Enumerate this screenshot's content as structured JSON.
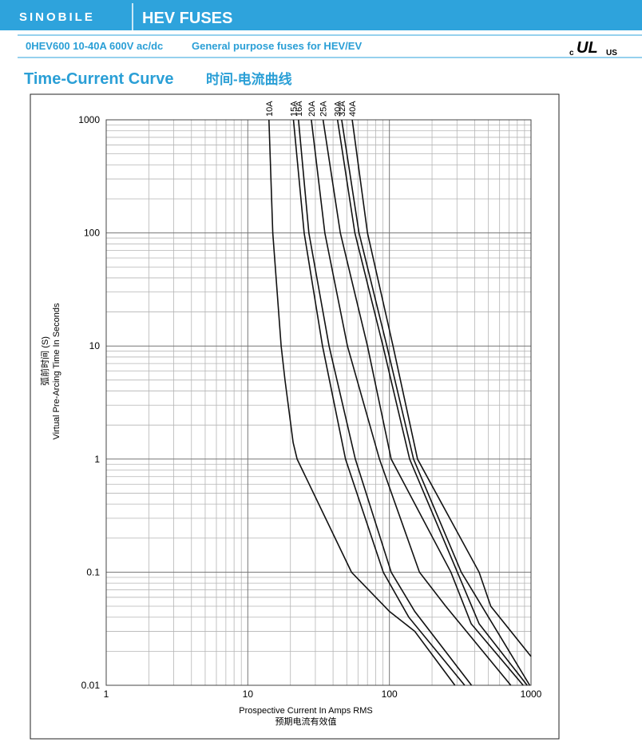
{
  "header": {
    "logo": "SINOBILE",
    "title": "HEV FUSES"
  },
  "subheader": {
    "model": "0HEV600 10-40A 600V ac/dc",
    "description": "General purpose fuses for HEV/EV",
    "cert": {
      "c": "c",
      "ul": "UL",
      "us": "US"
    }
  },
  "section_title": {
    "en": "Time-Current Curve",
    "zh": "时间-电流曲线"
  },
  "chart_data": {
    "type": "line",
    "xscale": "log",
    "yscale": "log",
    "grid": true,
    "x_label": "Prospective Current In Amps RMS",
    "x_label_zh": "预期电流有效值",
    "y_label": "Virtual Pre-Arcing Time In Seconds",
    "y_label_zh": "弧前时间 (S)",
    "xlim": [
      1,
      1000
    ],
    "xticks": [
      1,
      10,
      100,
      1000
    ],
    "ylim": [
      0.01,
      1000
    ],
    "yticks": [
      0.01,
      0.1,
      1,
      10,
      100,
      1000
    ],
    "series": [
      {
        "name": "10A",
        "color": "#111111",
        "x": [
          14.1,
          15,
          17.2,
          18.3,
          20.9,
          22.3,
          54,
          100,
          151,
          290
        ],
        "values": [
          1000,
          100,
          10,
          5,
          1.4,
          1,
          0.1,
          0.045,
          0.03,
          0.01
        ]
      },
      {
        "name": "15A",
        "color": "#111111",
        "x": [
          21,
          25,
          33.7,
          49,
          90.5,
          137,
          340
        ],
        "values": [
          1000,
          100,
          10,
          1,
          0.1,
          0.04,
          0.01
        ]
      },
      {
        "name": "16A",
        "color": "#111111",
        "x": [
          22.8,
          27,
          37.5,
          57.5,
          103,
          151,
          380
        ],
        "values": [
          1000,
          100,
          10,
          1,
          0.1,
          0.045,
          0.01
        ]
      },
      {
        "name": "20A",
        "color": "#111111",
        "x": [
          28.1,
          35,
          50.5,
          85,
          163,
          250,
          720
        ],
        "values": [
          1000,
          100,
          10,
          1,
          0.1,
          0.05,
          0.01
        ]
      },
      {
        "name": "25A",
        "color": "#111111",
        "x": [
          34,
          45,
          70,
          103,
          272,
          378,
          880
        ],
        "values": [
          1000,
          100,
          10,
          1,
          0.1,
          0.035,
          0.01
        ]
      },
      {
        "name": "30A",
        "color": "#111111",
        "x": [
          43,
          57,
          90,
          139,
          302,
          430,
          940
        ],
        "values": [
          1000,
          100,
          10,
          1,
          0.1,
          0.035,
          0.01
        ]
      },
      {
        "name": "32A",
        "color": "#111111",
        "x": [
          46,
          61,
          96,
          148,
          322,
          980
        ],
        "values": [
          1000,
          100,
          10,
          1,
          0.1,
          0.01
        ]
      },
      {
        "name": "40A",
        "color": "#111111",
        "x": [
          54.6,
          70,
          106,
          158,
          430,
          520,
          1000
        ],
        "values": [
          1000,
          100,
          10,
          1,
          0.1,
          0.05,
          0.018
        ]
      }
    ]
  }
}
